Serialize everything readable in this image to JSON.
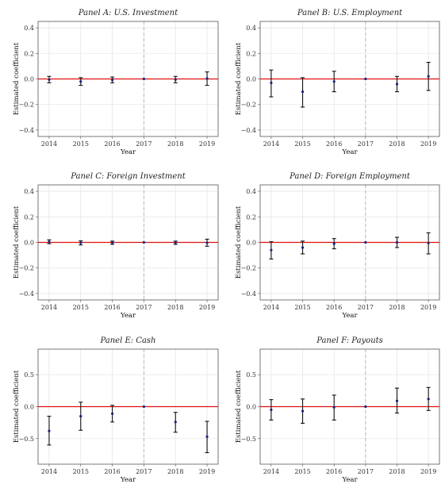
{
  "chart_data": [
    {
      "type": "scatter",
      "title": "Panel A: U.S. Investment",
      "xlabel": "Year",
      "ylabel": "Estimated coefficient",
      "ylim": [
        -0.45,
        0.45
      ],
      "yticks": [
        -0.4,
        -0.2,
        0.0,
        0.2,
        0.4
      ],
      "ytick_labels": [
        "−0.4",
        "−0.2",
        "0.0",
        "0.2",
        "0.4"
      ],
      "x": [
        2014,
        2015,
        2016,
        2017,
        2018,
        2019
      ],
      "y": [
        -0.005,
        -0.02,
        -0.008,
        0.0,
        -0.005,
        0.003
      ],
      "ci_low": [
        -0.03,
        -0.05,
        -0.03,
        0.0,
        -0.03,
        -0.05
      ],
      "ci_high": [
        0.02,
        0.01,
        0.015,
        0.0,
        0.02,
        0.055
      ],
      "reference_line": 0.0,
      "event_year": 2017,
      "grid": true
    },
    {
      "type": "scatter",
      "title": "Panel B: U.S. Employment",
      "xlabel": "Year",
      "ylabel": "Estimated coefficient",
      "ylim": [
        -0.45,
        0.45
      ],
      "yticks": [
        -0.4,
        -0.2,
        0.0,
        0.2,
        0.4
      ],
      "ytick_labels": [
        "−0.4",
        "−0.2",
        "0.0",
        "0.2",
        "0.4"
      ],
      "x": [
        2014,
        2015,
        2016,
        2017,
        2018,
        2019
      ],
      "y": [
        -0.03,
        -0.1,
        -0.02,
        0.0,
        -0.04,
        0.02
      ],
      "ci_low": [
        -0.14,
        -0.22,
        -0.1,
        0.0,
        -0.1,
        -0.09
      ],
      "ci_high": [
        0.07,
        0.01,
        0.06,
        0.0,
        0.02,
        0.13
      ],
      "reference_line": 0.0,
      "event_year": 2017,
      "grid": true
    },
    {
      "type": "scatter",
      "title": "Panel C: Foreign Investment",
      "xlabel": "Year",
      "ylabel": "Estimated coefficient",
      "ylim": [
        -0.45,
        0.45
      ],
      "yticks": [
        -0.4,
        -0.2,
        0.0,
        0.2,
        0.4
      ],
      "ytick_labels": [
        "−0.4",
        "−0.2",
        "0.0",
        "0.2",
        "0.4"
      ],
      "x": [
        2014,
        2015,
        2016,
        2017,
        2018,
        2019
      ],
      "y": [
        0.005,
        -0.003,
        -0.002,
        0.0,
        -0.002,
        -0.003
      ],
      "ci_low": [
        -0.01,
        -0.02,
        -0.015,
        0.0,
        -0.015,
        -0.03
      ],
      "ci_high": [
        0.02,
        0.012,
        0.01,
        0.0,
        0.01,
        0.025
      ],
      "reference_line": 0.0,
      "event_year": 2017,
      "grid": true
    },
    {
      "type": "scatter",
      "title": "Panel D: Foreign Employment",
      "xlabel": "Year",
      "ylabel": "Estimated coefficient",
      "ylim": [
        -0.45,
        0.45
      ],
      "yticks": [
        -0.4,
        -0.2,
        0.0,
        0.2,
        0.4
      ],
      "ytick_labels": [
        "−0.4",
        "−0.2",
        "0.0",
        "0.2",
        "0.4"
      ],
      "x": [
        2014,
        2015,
        2016,
        2017,
        2018,
        2019
      ],
      "y": [
        -0.06,
        -0.04,
        -0.01,
        0.0,
        0.0,
        -0.005
      ],
      "ci_low": [
        -0.13,
        -0.09,
        -0.05,
        0.0,
        -0.04,
        -0.09
      ],
      "ci_high": [
        0.005,
        0.01,
        0.03,
        0.0,
        0.04,
        0.075
      ],
      "reference_line": 0.0,
      "event_year": 2017,
      "grid": true
    },
    {
      "type": "scatter",
      "title": "Panel E: Cash",
      "xlabel": "Year",
      "ylabel": "Estimated coefficient",
      "ylim": [
        -0.9,
        0.9
      ],
      "yticks": [
        -0.5,
        0.0,
        0.5
      ],
      "ytick_labels": [
        "−0.5",
        "0.0",
        "0.5"
      ],
      "x": [
        2014,
        2015,
        2016,
        2017,
        2018,
        2019
      ],
      "y": [
        -0.38,
        -0.15,
        -0.11,
        0.0,
        -0.24,
        -0.47
      ],
      "ci_low": [
        -0.6,
        -0.37,
        -0.24,
        0.0,
        -0.4,
        -0.72
      ],
      "ci_high": [
        -0.15,
        0.07,
        0.02,
        0.0,
        -0.09,
        -0.23
      ],
      "reference_line": 0.0,
      "event_year": 2017,
      "grid": true
    },
    {
      "type": "scatter",
      "title": "Panel F: Payouts",
      "xlabel": "Year",
      "ylabel": "Estimated coefficient",
      "ylim": [
        -0.9,
        0.9
      ],
      "yticks": [
        -0.5,
        0.0,
        0.5
      ],
      "ytick_labels": [
        "−0.5",
        "0.0",
        "0.5"
      ],
      "x": [
        2014,
        2015,
        2016,
        2017,
        2018,
        2019
      ],
      "y": [
        -0.05,
        -0.07,
        -0.01,
        0.0,
        0.09,
        0.12
      ],
      "ci_low": [
        -0.21,
        -0.26,
        -0.21,
        0.0,
        -0.1,
        -0.06
      ],
      "ci_high": [
        0.11,
        0.12,
        0.18,
        0.0,
        0.29,
        0.3
      ],
      "reference_line": 0.0,
      "event_year": 2017,
      "grid": true
    }
  ],
  "colors": {
    "reference_line": "#e01010",
    "event_line": "#b8b8b8",
    "grid": "#e6e6e6",
    "frame": "#555555",
    "point": "#1a237e",
    "errorbar": "#111111"
  }
}
